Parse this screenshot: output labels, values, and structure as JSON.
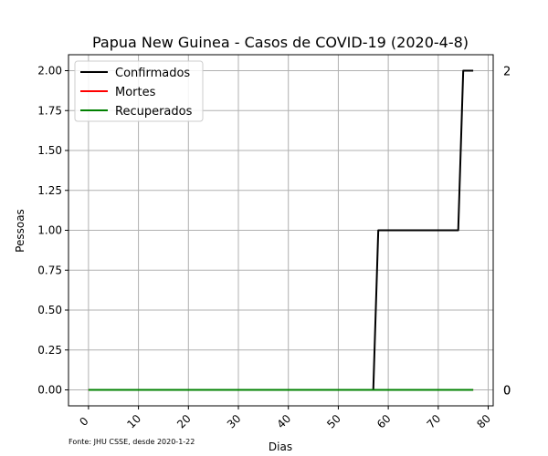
{
  "chart_data": {
    "type": "line",
    "title": "Papua New Guinea - Casos de COVID-19 (2020-4-8)",
    "xlabel": "Dias",
    "ylabel": "Pessoas",
    "xlim": [
      -4,
      81
    ],
    "ylim": [
      -0.1,
      2.1
    ],
    "xticks": [
      0,
      10,
      20,
      30,
      40,
      50,
      60,
      70,
      80
    ],
    "xtick_labels": [
      "0",
      "10",
      "20",
      "30",
      "40",
      "50",
      "60",
      "70",
      "80"
    ],
    "yticks": [
      0,
      0.25,
      0.5,
      0.75,
      1.0,
      1.25,
      1.5,
      1.75,
      2.0
    ],
    "ytick_labels": [
      "0.00",
      "0.25",
      "0.50",
      "0.75",
      "1.00",
      "1.25",
      "1.50",
      "1.75",
      "2.00"
    ],
    "grid": true,
    "legend_position": "top-left",
    "series": [
      {
        "name": "Confirmados",
        "color": "#000000",
        "x": [
          0,
          57,
          58,
          74,
          75,
          77
        ],
        "y": [
          0,
          0,
          1,
          1,
          2,
          2
        ]
      },
      {
        "name": "Mortes",
        "color": "#ff0000",
        "x": [
          0,
          77
        ],
        "y": [
          0,
          0
        ]
      },
      {
        "name": "Recuperados",
        "color": "#008000",
        "x": [
          0,
          77
        ],
        "y": [
          0,
          0
        ]
      }
    ],
    "right_labels": [
      {
        "text": "2",
        "value": 2
      },
      {
        "text": "0",
        "value": 0
      },
      {
        "text": "0",
        "value": 0
      }
    ],
    "footnote": "Fonte: JHU CSSE, desde 2020-1-22"
  }
}
